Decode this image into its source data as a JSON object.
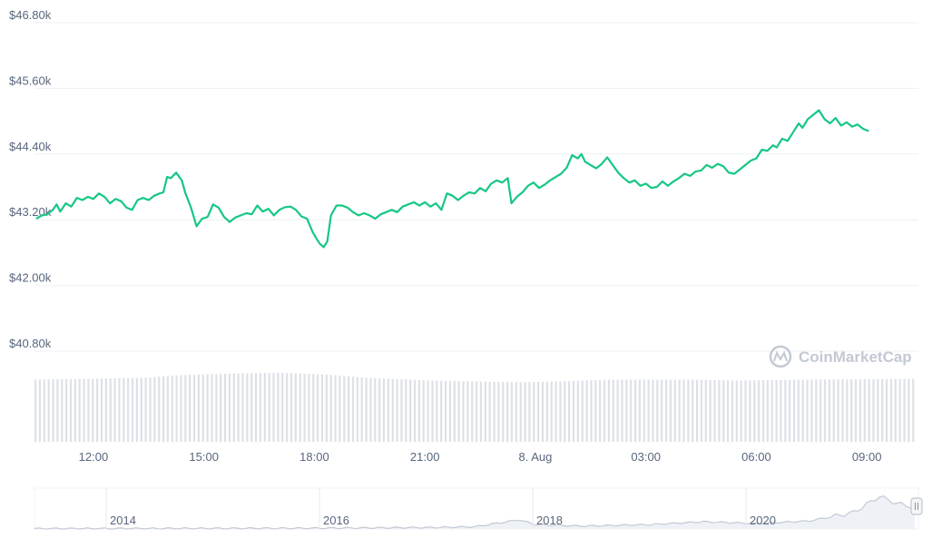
{
  "watermark": {
    "brand": "CoinMarketCap",
    "icon": "coinmarketcap-logo-icon"
  },
  "colors": {
    "price_line": "#16c784",
    "grid": "#eef0f3",
    "volume_bar": "#dde1e7",
    "axis_text": "#58667e",
    "navigator_line": "#c3c9d3",
    "navigator_fill": "#eef1f6"
  },
  "chart_data": {
    "type": "line",
    "title": "",
    "xlabel": "",
    "ylabel": "",
    "grid": true,
    "x_tick_labels": [
      "12:00",
      "15:00",
      "18:00",
      "21:00",
      "8. Aug",
      "03:00",
      "06:00",
      "09:00"
    ],
    "y_tick_labels": [
      "$40.80k",
      "$42.00k",
      "$43.20k",
      "$44.40k",
      "$45.60k",
      "$46.80k"
    ],
    "y_ticks": [
      40800,
      42000,
      43200,
      44400,
      45600,
      46800
    ],
    "ylim": [
      40800,
      46800
    ],
    "x_unit": "hours since 12:00 (7 Aug)",
    "xlim": [
      -1.6,
      22.4
    ],
    "series": [
      {
        "values": [
          [
            -1.55,
            43220
          ],
          [
            -1.4,
            43280
          ],
          [
            -1.25,
            43300
          ],
          [
            -1.1,
            43380
          ],
          [
            -1.0,
            43480
          ],
          [
            -0.9,
            43350
          ],
          [
            -0.75,
            43500
          ],
          [
            -0.6,
            43440
          ],
          [
            -0.45,
            43600
          ],
          [
            -0.3,
            43560
          ],
          [
            -0.15,
            43620
          ],
          [
            0.0,
            43580
          ],
          [
            0.15,
            43680
          ],
          [
            0.3,
            43620
          ],
          [
            0.45,
            43500
          ],
          [
            0.6,
            43580
          ],
          [
            0.75,
            43540
          ],
          [
            0.9,
            43420
          ],
          [
            1.05,
            43380
          ],
          [
            1.2,
            43560
          ],
          [
            1.35,
            43600
          ],
          [
            1.5,
            43560
          ],
          [
            1.65,
            43640
          ],
          [
            1.8,
            43680
          ],
          [
            1.9,
            43700
          ],
          [
            2.0,
            43980
          ],
          [
            2.1,
            43960
          ],
          [
            2.25,
            44060
          ],
          [
            2.4,
            43920
          ],
          [
            2.5,
            43680
          ],
          [
            2.65,
            43420
          ],
          [
            2.8,
            43080
          ],
          [
            2.95,
            43220
          ],
          [
            3.1,
            43250
          ],
          [
            3.25,
            43480
          ],
          [
            3.4,
            43420
          ],
          [
            3.55,
            43250
          ],
          [
            3.7,
            43160
          ],
          [
            3.85,
            43240
          ],
          [
            4.0,
            43280
          ],
          [
            4.15,
            43320
          ],
          [
            4.3,
            43300
          ],
          [
            4.45,
            43460
          ],
          [
            4.6,
            43350
          ],
          [
            4.75,
            43400
          ],
          [
            4.9,
            43280
          ],
          [
            5.05,
            43380
          ],
          [
            5.2,
            43430
          ],
          [
            5.35,
            43440
          ],
          [
            5.5,
            43380
          ],
          [
            5.65,
            43260
          ],
          [
            5.8,
            43220
          ],
          [
            5.95,
            42980
          ],
          [
            6.05,
            42860
          ],
          [
            6.15,
            42760
          ],
          [
            6.25,
            42700
          ],
          [
            6.35,
            42800
          ],
          [
            6.45,
            43280
          ],
          [
            6.6,
            43460
          ],
          [
            6.75,
            43460
          ],
          [
            6.9,
            43420
          ],
          [
            7.05,
            43340
          ],
          [
            7.2,
            43280
          ],
          [
            7.35,
            43320
          ],
          [
            7.5,
            43280
          ],
          [
            7.65,
            43220
          ],
          [
            7.8,
            43300
          ],
          [
            7.95,
            43340
          ],
          [
            8.1,
            43380
          ],
          [
            8.25,
            43340
          ],
          [
            8.4,
            43440
          ],
          [
            8.55,
            43480
          ],
          [
            8.7,
            43520
          ],
          [
            8.85,
            43460
          ],
          [
            9.0,
            43520
          ],
          [
            9.15,
            43440
          ],
          [
            9.3,
            43500
          ],
          [
            9.45,
            43380
          ],
          [
            9.6,
            43680
          ],
          [
            9.75,
            43640
          ],
          [
            9.9,
            43560
          ],
          [
            10.05,
            43640
          ],
          [
            10.2,
            43700
          ],
          [
            10.35,
            43680
          ],
          [
            10.5,
            43780
          ],
          [
            10.65,
            43720
          ],
          [
            10.8,
            43860
          ],
          [
            10.95,
            43920
          ],
          [
            11.1,
            43880
          ],
          [
            11.25,
            43960
          ],
          [
            11.35,
            43500
          ],
          [
            11.5,
            43620
          ],
          [
            11.65,
            43700
          ],
          [
            11.8,
            43820
          ],
          [
            11.95,
            43880
          ],
          [
            12.1,
            43780
          ],
          [
            12.25,
            43840
          ],
          [
            12.4,
            43920
          ],
          [
            12.55,
            43980
          ],
          [
            12.7,
            44040
          ],
          [
            12.85,
            44150
          ],
          [
            13.0,
            44380
          ],
          [
            13.15,
            44320
          ],
          [
            13.25,
            44400
          ],
          [
            13.35,
            44260
          ],
          [
            13.5,
            44200
          ],
          [
            13.65,
            44140
          ],
          [
            13.8,
            44220
          ],
          [
            13.95,
            44340
          ],
          [
            14.1,
            44200
          ],
          [
            14.25,
            44060
          ],
          [
            14.4,
            43960
          ],
          [
            14.55,
            43880
          ],
          [
            14.7,
            43920
          ],
          [
            14.85,
            43820
          ],
          [
            15.0,
            43860
          ],
          [
            15.15,
            43780
          ],
          [
            15.3,
            43800
          ],
          [
            15.45,
            43900
          ],
          [
            15.6,
            43820
          ],
          [
            15.75,
            43900
          ],
          [
            15.9,
            43960
          ],
          [
            16.05,
            44040
          ],
          [
            16.2,
            44000
          ],
          [
            16.35,
            44080
          ],
          [
            16.5,
            44100
          ],
          [
            16.65,
            44200
          ],
          [
            16.8,
            44150
          ],
          [
            16.95,
            44220
          ],
          [
            17.1,
            44180
          ],
          [
            17.25,
            44060
          ],
          [
            17.4,
            44040
          ],
          [
            17.55,
            44120
          ],
          [
            17.7,
            44200
          ],
          [
            17.85,
            44280
          ],
          [
            18.0,
            44320
          ],
          [
            18.15,
            44480
          ],
          [
            18.3,
            44460
          ],
          [
            18.45,
            44560
          ],
          [
            18.55,
            44520
          ],
          [
            18.7,
            44680
          ],
          [
            18.85,
            44640
          ],
          [
            19.0,
            44800
          ],
          [
            19.15,
            44960
          ],
          [
            19.25,
            44880
          ],
          [
            19.4,
            45040
          ],
          [
            19.55,
            45120
          ],
          [
            19.7,
            45200
          ],
          [
            19.85,
            45040
          ],
          [
            20.0,
            44960
          ],
          [
            20.15,
            45060
          ],
          [
            20.3,
            44920
          ],
          [
            20.45,
            44980
          ],
          [
            20.6,
            44900
          ],
          [
            20.75,
            44940
          ],
          [
            20.9,
            44860
          ],
          [
            21.05,
            44820
          ]
        ]
      }
    ],
    "volume_bars": {
      "count": 200,
      "profile": [
        [
          0.0,
          0.72
        ],
        [
          0.12,
          0.74
        ],
        [
          0.16,
          0.77
        ],
        [
          0.22,
          0.79
        ],
        [
          0.28,
          0.8
        ],
        [
          0.33,
          0.78
        ],
        [
          0.38,
          0.74
        ],
        [
          0.45,
          0.71
        ],
        [
          0.55,
          0.69
        ],
        [
          0.6,
          0.7
        ],
        [
          0.65,
          0.72
        ],
        [
          0.75,
          0.72
        ],
        [
          0.8,
          0.71
        ],
        [
          0.88,
          0.72
        ],
        [
          1.0,
          0.73
        ]
      ]
    },
    "navigator": {
      "x_tick_labels": [
        "2014",
        "2016",
        "2018",
        "2020"
      ],
      "profile": [
        [
          0.0,
          0.01
        ],
        [
          0.3,
          0.02
        ],
        [
          0.45,
          0.04
        ],
        [
          0.5,
          0.06
        ],
        [
          0.55,
          0.25
        ],
        [
          0.57,
          0.12
        ],
        [
          0.62,
          0.08
        ],
        [
          0.7,
          0.12
        ],
        [
          0.76,
          0.2
        ],
        [
          0.82,
          0.15
        ],
        [
          0.88,
          0.22
        ],
        [
          0.93,
          0.45
        ],
        [
          0.96,
          0.9
        ],
        [
          0.98,
          0.7
        ],
        [
          1.0,
          0.6
        ]
      ]
    }
  }
}
